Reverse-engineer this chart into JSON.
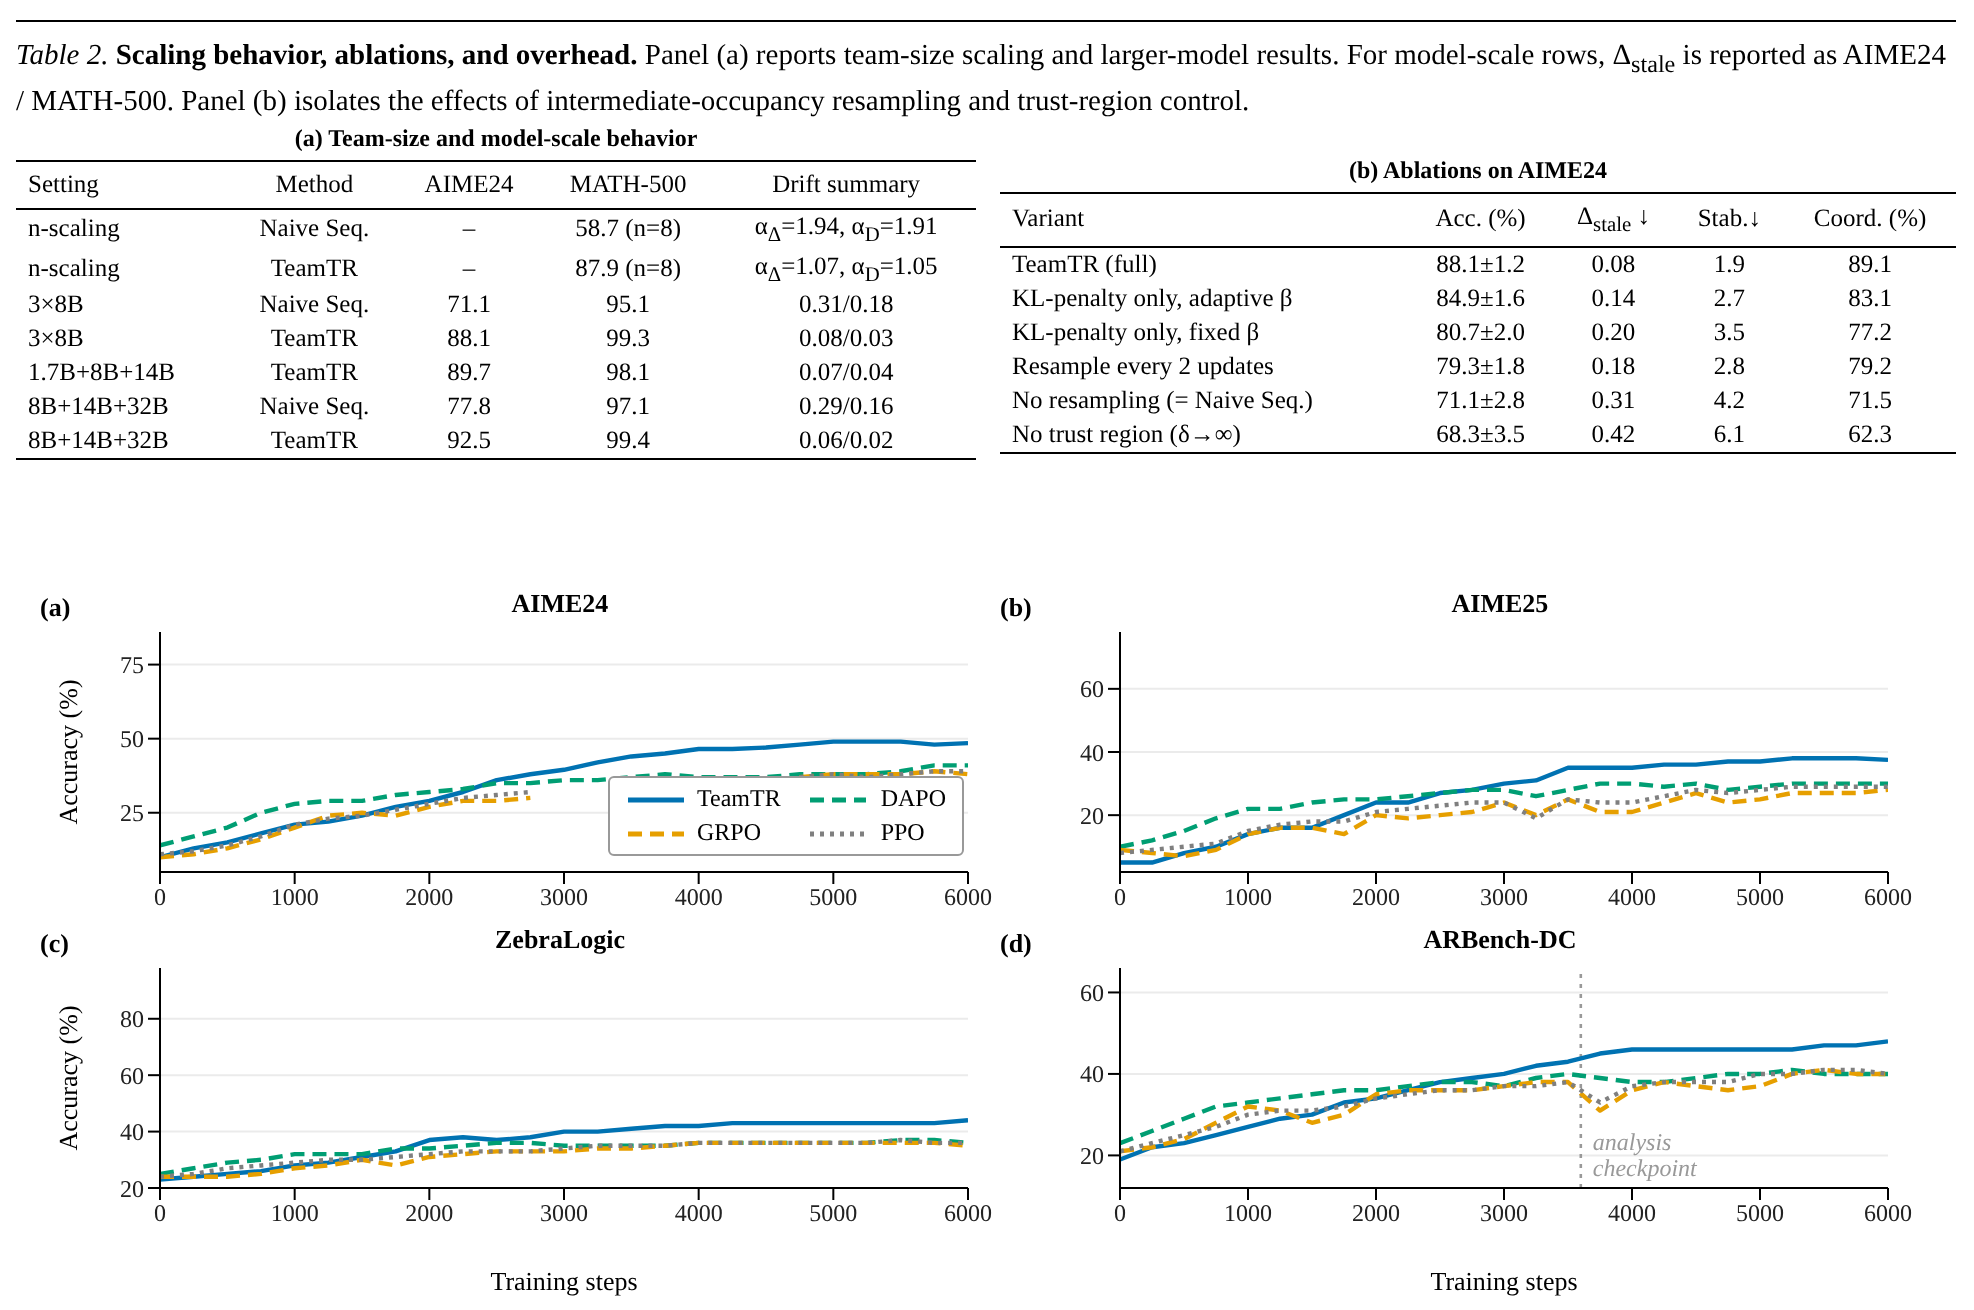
{
  "chart_data": [
    {
      "type": "other",
      "title": "(a) Team-size and model-scale behavior",
      "annotations": [
        "Table 2.",
        "Scaling behavior, ablations, and overhead.",
        "Panel (a) reports team-size scaling and larger-model results. For model-scale rows, Δ$_{stale}$ is reported as AIME24 / MATH-500. Panel (b) isolates the effects of intermediate-occupancy resampling and trust-region control."
      ],
      "categories": [
        "Setting",
        "Method",
        "AIME24",
        "MATH-500",
        "Drift summary"
      ],
      "cell_labels": [
        [
          "n-scaling",
          "Naive Seq.",
          "–",
          "58.7 (n=8)",
          "α$_{Δ}$=1.94, α$_{D}$=1.91"
        ],
        [
          "n-scaling",
          "TeamTR",
          "–",
          "87.9 (n=8)",
          "α$_{Δ}$=1.07, α$_{D}$=1.05"
        ],
        [
          "3×8B",
          "Naive Seq.",
          "71.1",
          "95.1",
          "0.31/0.18"
        ],
        [
          "3×8B",
          "TeamTR",
          "88.1",
          "99.3",
          "0.08/0.03"
        ],
        [
          "1.7B+8B+14B",
          "TeamTR",
          "89.7",
          "98.1",
          "0.07/0.04"
        ],
        [
          "8B+14B+32B",
          "Naive Seq.",
          "77.8",
          "97.1",
          "0.29/0.16"
        ],
        [
          "8B+14B+32B",
          "TeamTR",
          "92.5",
          "99.4",
          "0.06/0.02"
        ]
      ]
    },
    {
      "type": "other",
      "title": "(b) Ablations on AIME24",
      "categories": [
        "Variant",
        "Acc. (%)",
        "Δ$_{stale}$ ↓",
        "Stab.↓",
        "Coord. (%)"
      ],
      "cell_labels": [
        [
          "TeamTR (full)",
          "88.1±1.2",
          "0.08",
          "1.9",
          "89.1"
        ],
        [
          "KL-penalty only, adaptive β",
          "84.9±1.6",
          "0.14",
          "2.7",
          "83.1"
        ],
        [
          "KL-penalty only, fixed β",
          "80.7±2.0",
          "0.20",
          "3.5",
          "77.2"
        ],
        [
          "Resample every 2 updates",
          "79.3±1.8",
          "0.18",
          "2.8",
          "79.2"
        ],
        [
          "No resampling (= Naive Seq.)",
          "71.1±2.8",
          "0.31",
          "4.2",
          "71.5"
        ],
        [
          "No trust region (δ→∞)",
          "68.3±3.5",
          "0.42",
          "6.1",
          "62.3"
        ]
      ]
    },
    {
      "type": "line",
      "title": "AIME24",
      "annotations": [
        "(a)"
      ],
      "ylabel": "Accuracy (%)",
      "legend": "bottom right",
      "grid": "y",
      "x": [
        0,
        250,
        500,
        750,
        1000,
        1250,
        1500,
        1750,
        2000,
        2250,
        2500,
        2750,
        3000,
        3250,
        3500,
        3750,
        4000,
        4250,
        4500,
        4750,
        5000,
        5250,
        5500,
        5750,
        6000
      ],
      "xlim": [
        0,
        6000
      ],
      "xticks": [
        0,
        1000,
        2000,
        3000,
        4000,
        5000,
        6000
      ],
      "ylim": [
        5,
        86
      ],
      "yticks": [
        25,
        50,
        75
      ],
      "series": [
        {
          "name": "TeamTR",
          "color": "#0072b2",
          "line_style": "solid",
          "values": [
            10,
            13,
            15,
            18,
            21,
            22,
            24,
            27,
            29,
            32,
            36,
            38,
            39.5,
            42,
            44,
            45,
            46.5,
            46.5,
            47,
            48,
            49,
            49,
            49,
            48,
            48.5
          ]
        },
        {
          "name": "DAPO",
          "color": "#009e73",
          "line_style": "dashed",
          "values": [
            14,
            17,
            20,
            25,
            28,
            29,
            29,
            31,
            32,
            33,
            35,
            35,
            36,
            36,
            37,
            38,
            37,
            37,
            37,
            38,
            38,
            38,
            39,
            41,
            41
          ]
        },
        {
          "name": "GRPO",
          "color": "#e69f00",
          "line_style": "dashed",
          "values": [
            10,
            11,
            13,
            16,
            20,
            24,
            25,
            24,
            27,
            29,
            29,
            30,
            null,
            null,
            null,
            null,
            null,
            null,
            null,
            37,
            38,
            38,
            38,
            39,
            38
          ]
        },
        {
          "name": "PPO",
          "color": "#7f7f7f",
          "line_style": "dotted",
          "values": [
            11,
            12,
            14,
            17,
            21,
            23,
            24,
            26,
            28,
            30,
            31,
            32,
            null,
            null,
            null,
            null,
            null,
            null,
            null,
            37,
            38,
            37,
            38,
            39,
            39
          ]
        }
      ]
    },
    {
      "type": "line",
      "title": "AIME25",
      "annotations": [
        "(b)"
      ],
      "grid": "y",
      "x": [
        0,
        250,
        500,
        750,
        1000,
        1250,
        1500,
        1750,
        2000,
        2250,
        2500,
        2750,
        3000,
        3250,
        3500,
        3750,
        4000,
        4250,
        4500,
        4750,
        5000,
        5250,
        5500,
        5750,
        6000
      ],
      "xlim": [
        0,
        6000
      ],
      "xticks": [
        0,
        1000,
        2000,
        3000,
        4000,
        5000,
        6000
      ],
      "ylim": [
        2,
        78
      ],
      "yticks": [
        20,
        40,
        60
      ],
      "series": [
        {
          "color": "#0072b2",
          "line_style": "solid",
          "values": [
            5,
            5,
            8,
            10,
            14,
            16,
            16,
            20,
            24,
            24,
            27,
            28,
            30,
            31,
            35,
            35,
            35,
            36,
            36,
            37,
            37,
            38,
            38,
            38,
            37.5
          ]
        },
        {
          "color": "#009e73",
          "line_style": "dashed",
          "values": [
            10,
            12,
            15,
            19,
            22,
            22,
            24,
            25,
            25,
            26,
            27,
            28,
            28,
            26,
            28,
            30,
            30,
            29,
            30,
            28,
            29,
            30,
            30,
            30,
            30
          ]
        },
        {
          "color": "#e69f00",
          "line_style": "dashed",
          "values": [
            9,
            8,
            7,
            9,
            14,
            16,
            16,
            14,
            20,
            19,
            20,
            21,
            24,
            20,
            25,
            21,
            21,
            24,
            27,
            24,
            25,
            27,
            27,
            27,
            28
          ]
        },
        {
          "color": "#7f7f7f",
          "line_style": "dotted",
          "values": [
            8,
            9,
            10,
            11,
            15,
            17,
            18,
            18,
            21,
            22,
            23,
            24,
            24,
            19,
            25,
            24,
            24,
            26,
            28,
            27,
            28,
            29,
            29,
            29,
            29
          ]
        }
      ]
    },
    {
      "type": "line",
      "title": "ZebraLogic",
      "annotations": [
        "(c)"
      ],
      "ylabel": "Accuracy (%)",
      "xlabel": "Training steps",
      "grid": "y",
      "x": [
        0,
        250,
        500,
        750,
        1000,
        1250,
        1500,
        1750,
        2000,
        2250,
        2500,
        2750,
        3000,
        3250,
        3500,
        3750,
        4000,
        4250,
        4500,
        4750,
        5000,
        5250,
        5500,
        5750,
        6000
      ],
      "xlim": [
        0,
        6000
      ],
      "xticks": [
        0,
        1000,
        2000,
        3000,
        4000,
        5000,
        6000
      ],
      "ylim": [
        20,
        98
      ],
      "yticks": [
        20,
        40,
        60,
        80
      ],
      "series": [
        {
          "color": "#0072b2",
          "line_style": "solid",
          "values": [
            23,
            24,
            25,
            26,
            28,
            29,
            31,
            33,
            37,
            38,
            37,
            38,
            40,
            40,
            41,
            42,
            42,
            43,
            43,
            43,
            43,
            43,
            43,
            43,
            44
          ]
        },
        {
          "color": "#009e73",
          "line_style": "dashed",
          "values": [
            25,
            27,
            29,
            30,
            32,
            32,
            32,
            34,
            34,
            35,
            36,
            36,
            35,
            35,
            35,
            35,
            36,
            36,
            36,
            36,
            36,
            36,
            37,
            37,
            36
          ]
        },
        {
          "color": "#e69f00",
          "line_style": "dashed",
          "values": [
            24,
            24,
            24,
            25,
            27,
            28,
            30,
            28,
            31,
            32,
            33,
            33,
            33,
            34,
            34,
            35,
            36,
            36,
            36,
            36,
            36,
            36,
            36,
            36,
            35
          ]
        },
        {
          "color": "#7f7f7f",
          "line_style": "dotted",
          "values": [
            24,
            25,
            27,
            28,
            29,
            30,
            30,
            31,
            32,
            33,
            33,
            33,
            34,
            35,
            35,
            35,
            36,
            36,
            36,
            36,
            36,
            36,
            37,
            36,
            36
          ]
        }
      ]
    },
    {
      "type": "line",
      "title": "ARBench-DC",
      "annotations": [
        "(d)"
      ],
      "xlabel": "Training steps",
      "grid": "y",
      "x": [
        0,
        250,
        500,
        750,
        1000,
        1250,
        1500,
        1750,
        2000,
        2250,
        2500,
        2750,
        3000,
        3250,
        3500,
        3750,
        4000,
        4250,
        4500,
        4750,
        5000,
        5250,
        5500,
        5750,
        6000
      ],
      "xlim": [
        0,
        6000
      ],
      "xticks": [
        0,
        1000,
        2000,
        3000,
        4000,
        5000,
        6000
      ],
      "ylim": [
        12,
        66
      ],
      "yticks": [
        20,
        40,
        60
      ],
      "ref_lines": [
        {
          "axis": "x",
          "value": 3600,
          "label": "analysis checkpoint",
          "color": "#999999",
          "line_style": "dotted"
        }
      ],
      "series": [
        {
          "color": "#0072b2",
          "line_style": "solid",
          "values": [
            19,
            22,
            23,
            25,
            27,
            29,
            30,
            33,
            34,
            36,
            38,
            39,
            40,
            42,
            43,
            45,
            46,
            46,
            46,
            46,
            46,
            46,
            47,
            47,
            48
          ]
        },
        {
          "color": "#009e73",
          "line_style": "dashed",
          "values": [
            23,
            26,
            29,
            32,
            33,
            34,
            35,
            36,
            36,
            37,
            38,
            38,
            37,
            39,
            40,
            39,
            38,
            38,
            39,
            40,
            40,
            41,
            40,
            40,
            40
          ]
        },
        {
          "color": "#e69f00",
          "line_style": "dashed",
          "values": [
            21,
            22,
            24,
            28,
            32,
            31,
            28,
            30,
            35,
            36,
            36,
            36,
            37,
            38,
            38,
            31,
            36,
            38,
            37,
            36,
            37,
            40,
            41,
            40,
            40
          ]
        },
        {
          "color": "#7f7f7f",
          "line_style": "dotted",
          "values": [
            21,
            23,
            25,
            27,
            30,
            31,
            31,
            32,
            34,
            35,
            36,
            36,
            37,
            37,
            38,
            33,
            37,
            38,
            38,
            38,
            40,
            40,
            41,
            41,
            40
          ]
        }
      ]
    }
  ]
}
